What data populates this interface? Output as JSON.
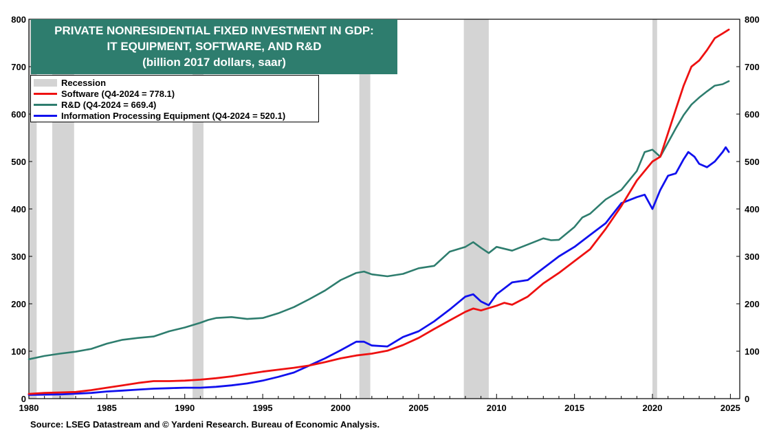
{
  "title": {
    "line1": "PRIVATE NONRESIDENTIAL FIXED INVESTMENT IN GDP:",
    "line2": "IT EQUIPMENT, SOFTWARE, AND R&D",
    "line3": "(billion 2017 dollars, saar)"
  },
  "legend": {
    "recession": "Recession",
    "software": "Software (Q4-2024 = 778.1)",
    "rd": "R&D  (Q4-2024 = 669.4)",
    "equipment": "Information Processing Equipment (Q4-2024 = 520.1)"
  },
  "source": "Source: LSEG Datastream and © Yardeni Research. Bureau of Economic Analysis.",
  "colors": {
    "software": "#ee1111",
    "rd": "#2e7d6e",
    "equipment": "#1111ee",
    "recession": "#d4d4d4",
    "title_bg": "#2e7d6e"
  },
  "chart_data": {
    "type": "line",
    "title": "PRIVATE NONRESIDENTIAL FIXED INVESTMENT IN GDP: IT EQUIPMENT, SOFTWARE, AND R&D (billion 2017 dollars, saar)",
    "xlabel": "",
    "ylabel": "",
    "xlim": [
      1980,
      2025.6
    ],
    "ylim": [
      0,
      800
    ],
    "x_ticks": [
      1980,
      1985,
      1990,
      1995,
      2000,
      2005,
      2010,
      2015,
      2020,
      2025
    ],
    "y_ticks": [
      0,
      100,
      200,
      300,
      400,
      500,
      600,
      700,
      800
    ],
    "recessions": [
      [
        1980.0,
        1980.5
      ],
      [
        1981.5,
        1982.9
      ],
      [
        1990.5,
        1991.2
      ],
      [
        2001.2,
        2001.9
      ],
      [
        2007.9,
        2009.5
      ],
      [
        2020.0,
        2020.3
      ]
    ],
    "series": [
      {
        "name": "Software",
        "key": "software",
        "points": [
          [
            1980,
            10
          ],
          [
            1981,
            12
          ],
          [
            1982,
            13
          ],
          [
            1983,
            14
          ],
          [
            1984,
            18
          ],
          [
            1985,
            23
          ],
          [
            1986,
            28
          ],
          [
            1987,
            33
          ],
          [
            1988,
            37
          ],
          [
            1989,
            37
          ],
          [
            1990,
            38
          ],
          [
            1991,
            40
          ],
          [
            1992,
            43
          ],
          [
            1993,
            47
          ],
          [
            1994,
            52
          ],
          [
            1995,
            57
          ],
          [
            1996,
            61
          ],
          [
            1997,
            65
          ],
          [
            1998,
            70
          ],
          [
            1999,
            77
          ],
          [
            2000,
            85
          ],
          [
            2001,
            91
          ],
          [
            2002,
            95
          ],
          [
            2003,
            101
          ],
          [
            2004,
            113
          ],
          [
            2005,
            128
          ],
          [
            2006,
            147
          ],
          [
            2007,
            165
          ],
          [
            2008,
            183
          ],
          [
            2008.5,
            190
          ],
          [
            2009,
            186
          ],
          [
            2010,
            196
          ],
          [
            2010.5,
            202
          ],
          [
            2011,
            198
          ],
          [
            2012,
            215
          ],
          [
            2013,
            243
          ],
          [
            2014,
            265
          ],
          [
            2015,
            290
          ],
          [
            2016,
            315
          ],
          [
            2017,
            358
          ],
          [
            2018,
            406
          ],
          [
            2019,
            460
          ],
          [
            2020,
            500
          ],
          [
            2020.5,
            510
          ],
          [
            2021,
            560
          ],
          [
            2021.5,
            610
          ],
          [
            2022,
            660
          ],
          [
            2022.5,
            700
          ],
          [
            2023,
            713
          ],
          [
            2023.5,
            735
          ],
          [
            2024,
            760
          ],
          [
            2024.5,
            770
          ],
          [
            2024.9,
            778.1
          ]
        ]
      },
      {
        "name": "R&D",
        "key": "rd",
        "points": [
          [
            1980,
            83
          ],
          [
            1981,
            90
          ],
          [
            1982,
            95
          ],
          [
            1983,
            99
          ],
          [
            1984,
            105
          ],
          [
            1985,
            116
          ],
          [
            1986,
            124
          ],
          [
            1987,
            128
          ],
          [
            1988,
            131
          ],
          [
            1989,
            142
          ],
          [
            1990,
            150
          ],
          [
            1991,
            160
          ],
          [
            1991.5,
            166
          ],
          [
            1992,
            170
          ],
          [
            1993,
            172
          ],
          [
            1994,
            168
          ],
          [
            1995,
            170
          ],
          [
            1996,
            180
          ],
          [
            1997,
            193
          ],
          [
            1998,
            210
          ],
          [
            1999,
            228
          ],
          [
            2000,
            250
          ],
          [
            2001,
            265
          ],
          [
            2001.5,
            268
          ],
          [
            2002,
            262
          ],
          [
            2003,
            258
          ],
          [
            2004,
            263
          ],
          [
            2005,
            275
          ],
          [
            2006,
            280
          ],
          [
            2007,
            310
          ],
          [
            2008,
            320
          ],
          [
            2008.5,
            330
          ],
          [
            2009,
            318
          ],
          [
            2009.5,
            307
          ],
          [
            2010,
            320
          ],
          [
            2011,
            312
          ],
          [
            2012,
            325
          ],
          [
            2013,
            338
          ],
          [
            2013.5,
            334
          ],
          [
            2014,
            335
          ],
          [
            2015,
            362
          ],
          [
            2015.5,
            382
          ],
          [
            2016,
            390
          ],
          [
            2017,
            420
          ],
          [
            2018,
            440
          ],
          [
            2019,
            480
          ],
          [
            2019.5,
            520
          ],
          [
            2020,
            525
          ],
          [
            2020.5,
            510
          ],
          [
            2021,
            540
          ],
          [
            2021.5,
            570
          ],
          [
            2022,
            598
          ],
          [
            2022.5,
            620
          ],
          [
            2023,
            635
          ],
          [
            2023.5,
            648
          ],
          [
            2024,
            660
          ],
          [
            2024.5,
            663
          ],
          [
            2024.9,
            669.4
          ]
        ]
      },
      {
        "name": "Information Processing Equipment",
        "key": "equipment",
        "points": [
          [
            1980,
            8
          ],
          [
            1982,
            9
          ],
          [
            1984,
            12
          ],
          [
            1985,
            15
          ],
          [
            1986,
            17
          ],
          [
            1987,
            19
          ],
          [
            1988,
            21
          ],
          [
            1989,
            22
          ],
          [
            1990,
            23
          ],
          [
            1991,
            23
          ],
          [
            1992,
            25
          ],
          [
            1993,
            28
          ],
          [
            1994,
            32
          ],
          [
            1995,
            38
          ],
          [
            1996,
            46
          ],
          [
            1997,
            55
          ],
          [
            1998,
            70
          ],
          [
            1999,
            85
          ],
          [
            2000,
            102
          ],
          [
            2001,
            120
          ],
          [
            2001.5,
            120
          ],
          [
            2002,
            112
          ],
          [
            2003,
            110
          ],
          [
            2004,
            130
          ],
          [
            2005,
            142
          ],
          [
            2006,
            163
          ],
          [
            2007,
            188
          ],
          [
            2008,
            215
          ],
          [
            2008.5,
            220
          ],
          [
            2009,
            205
          ],
          [
            2009.5,
            197
          ],
          [
            2010,
            220
          ],
          [
            2011,
            245
          ],
          [
            2012,
            250
          ],
          [
            2013,
            275
          ],
          [
            2014,
            300
          ],
          [
            2015,
            320
          ],
          [
            2016,
            345
          ],
          [
            2017,
            370
          ],
          [
            2018,
            412
          ],
          [
            2019,
            425
          ],
          [
            2019.5,
            430
          ],
          [
            2020,
            400
          ],
          [
            2020.5,
            440
          ],
          [
            2021,
            470
          ],
          [
            2021.5,
            475
          ],
          [
            2022,
            505
          ],
          [
            2022.3,
            520
          ],
          [
            2022.7,
            510
          ],
          [
            2023,
            495
          ],
          [
            2023.5,
            488
          ],
          [
            2024,
            500
          ],
          [
            2024.5,
            520
          ],
          [
            2024.7,
            530
          ],
          [
            2024.9,
            520.1
          ]
        ]
      }
    ]
  }
}
